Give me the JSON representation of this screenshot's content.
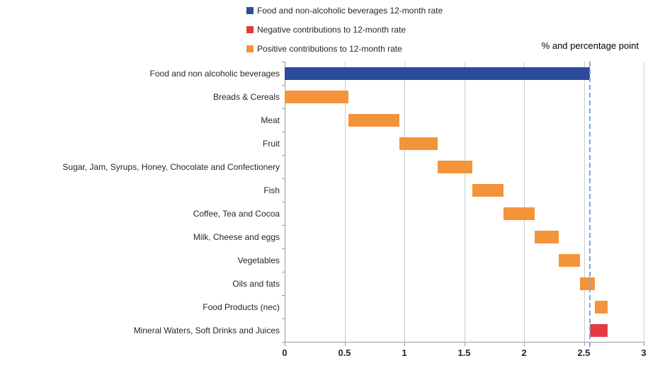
{
  "legend": {
    "items": [
      {
        "label": "Food and non-alcoholic beverages 12-month rate",
        "color": "#2b4b9b",
        "swatch": "blue-square"
      },
      {
        "label": "Negative contributions to 12-month rate",
        "color": "#e23b41",
        "swatch": "red-square"
      },
      {
        "label": "Positive contributions to 12-month rate",
        "color": "#f3943b",
        "swatch": "orange-square"
      }
    ]
  },
  "chart_data": {
    "type": "bar",
    "subtype": "horizontal-waterfall",
    "title": "",
    "unit_label": "% and percentage point",
    "xlabel": "",
    "ylabel": "",
    "xlim": [
      0,
      3
    ],
    "xticks": [
      0,
      0.5,
      1,
      1.5,
      2,
      2.5,
      3
    ],
    "xtick_labels": [
      "0",
      "0.5",
      "1",
      "1.5",
      "2",
      "2.5",
      "3"
    ],
    "grid": "vertical-on",
    "legend_position": "top-center",
    "reference_line": {
      "value": 2.55,
      "style": "dashed",
      "color": "#7ea6d8"
    },
    "colors": {
      "total": "#2b4b9b",
      "positive": "#f3943b",
      "negative": "#e23b41"
    },
    "bars": [
      {
        "category": "Food and non alcoholic beverages",
        "start": 0,
        "end": 2.55,
        "value": 2.55,
        "role": "total"
      },
      {
        "category": "Breads & Cereals",
        "start": 0,
        "end": 0.53,
        "value": 0.53,
        "role": "positive"
      },
      {
        "category": "Meat",
        "start": 0.53,
        "end": 0.96,
        "value": 0.43,
        "role": "positive"
      },
      {
        "category": "Fruit",
        "start": 0.96,
        "end": 1.28,
        "value": 0.32,
        "role": "positive"
      },
      {
        "category": "Sugar, Jam, Syrups, Honey, Chocolate and Confectionery",
        "start": 1.28,
        "end": 1.57,
        "value": 0.29,
        "role": "positive"
      },
      {
        "category": "Fish",
        "start": 1.57,
        "end": 1.83,
        "value": 0.26,
        "role": "positive"
      },
      {
        "category": "Coffee, Tea and Cocoa",
        "start": 1.83,
        "end": 2.09,
        "value": 0.26,
        "role": "positive"
      },
      {
        "category": "Milk, Cheese and eggs",
        "start": 2.09,
        "end": 2.29,
        "value": 0.2,
        "role": "positive"
      },
      {
        "category": "Vegetables",
        "start": 2.29,
        "end": 2.47,
        "value": 0.18,
        "role": "positive"
      },
      {
        "category": "Oils and fats",
        "start": 2.47,
        "end": 2.59,
        "value": 0.12,
        "role": "positive"
      },
      {
        "category": "Food Products (nec)",
        "start": 2.59,
        "end": 2.7,
        "value": 0.11,
        "role": "positive"
      },
      {
        "category": "Mineral Waters, Soft Drinks and Juices",
        "start": 2.7,
        "end": 2.55,
        "value": -0.15,
        "role": "negative"
      }
    ]
  }
}
